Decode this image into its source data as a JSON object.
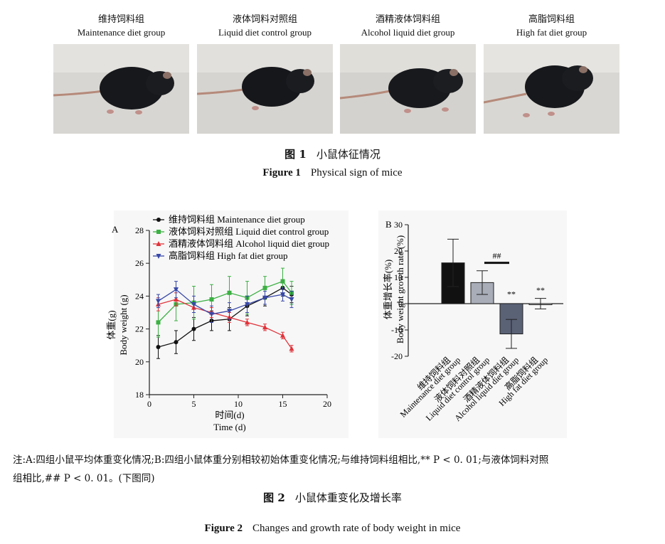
{
  "figure1": {
    "panels": [
      {
        "label_cn": "维持饲料组",
        "label_en": "Maintenance diet group"
      },
      {
        "label_cn": "液体饲料对照组",
        "label_en": "Liquid diet control group"
      },
      {
        "label_cn": "酒精液体饲料组",
        "label_en": "Alcohol liquid diet group"
      },
      {
        "label_cn": "高脂饲料组",
        "label_en": "High fat diet group"
      }
    ],
    "caption_cn_num": "图 1",
    "caption_cn": "小鼠体征情况",
    "caption_en_num": "Figure 1",
    "caption_en": "Physical sign of mice"
  },
  "chart_data": [
    {
      "type": "line",
      "panel_label": "A",
      "xlabel_cn": "时间(d)",
      "xlabel_en": "Time (d)",
      "ylabel_cn": "体重(g)",
      "ylabel_en": "Body weight (g)",
      "xlim": [
        0,
        20
      ],
      "ylim": [
        18,
        28
      ],
      "xticks": [
        0,
        5,
        10,
        15,
        20
      ],
      "yticks": [
        18,
        20,
        22,
        24,
        26,
        28
      ],
      "legend_position": "top-left",
      "series": [
        {
          "name_cn": "维持饲料组",
          "name_en": "Maintenance diet group",
          "color": "#111111",
          "marker": "circle",
          "x": [
            1,
            3,
            5,
            7,
            9,
            11,
            13,
            15,
            16
          ],
          "y": [
            20.9,
            21.2,
            22.0,
            22.5,
            22.6,
            23.4,
            23.9,
            24.5,
            24.1
          ],
          "err": [
            0.7,
            0.7,
            0.7,
            0.6,
            0.7,
            0.6,
            0.5,
            0.5,
            0.5
          ]
        },
        {
          "name_cn": "液体饲料对照组",
          "name_en": "Liquid diet control group",
          "color": "#3cb043",
          "marker": "square",
          "x": [
            1,
            3,
            5,
            7,
            9,
            11,
            13,
            15,
            16
          ],
          "y": [
            22.4,
            23.5,
            23.6,
            23.8,
            24.2,
            23.9,
            24.5,
            24.9,
            24.2
          ],
          "err": [
            0.9,
            1.0,
            1.0,
            0.9,
            1.0,
            1.0,
            0.7,
            0.8,
            0.7
          ]
        },
        {
          "name_cn": "酒精液体饲料组",
          "name_en": "Alcohol liquid diet group",
          "color": "#e0333a",
          "marker": "triangle",
          "x": [
            1,
            3,
            5,
            7,
            9,
            11,
            13,
            15,
            16
          ],
          "y": [
            23.5,
            23.8,
            23.3,
            23.0,
            22.7,
            22.4,
            22.1,
            21.6,
            20.8
          ],
          "err": [
            0.4,
            0.4,
            0.3,
            0.3,
            0.3,
            0.2,
            0.2,
            0.2,
            0.2
          ]
        },
        {
          "name_cn": "高脂饲料组",
          "name_en": "High fat diet group",
          "color": "#3848a8",
          "marker": "triangle-down",
          "x": [
            1,
            3,
            5,
            7,
            9,
            11,
            13,
            15,
            16
          ],
          "y": [
            23.7,
            24.4,
            23.5,
            22.9,
            23.1,
            23.5,
            23.9,
            24.1,
            23.8
          ],
          "err": [
            0.4,
            0.5,
            0.5,
            0.5,
            0.5,
            0.5,
            0.4,
            0.4,
            0.5
          ]
        }
      ]
    },
    {
      "type": "bar",
      "panel_label": "B",
      "ylabel_cn": "体重增长率(%)",
      "ylabel_en": "Body weight growth rate (%)",
      "ylim": [
        -20,
        30
      ],
      "yticks": [
        -20,
        -10,
        0,
        10,
        20,
        30
      ],
      "categories": [
        {
          "cn": "维持饲料组",
          "en": "Maintenance diet group"
        },
        {
          "cn": "液体饲料对照组",
          "en": "Liquid diet control group"
        },
        {
          "cn": "酒精液体饲料组",
          "en": "Alcohol liquid diet group"
        },
        {
          "cn": "高脂饲料组",
          "en": "High fat diet group"
        }
      ],
      "values": [
        15.5,
        8.0,
        -11.5,
        0.0
      ],
      "errors": [
        9.0,
        4.5,
        5.5,
        2.0
      ],
      "colors": [
        "#111111",
        "#a8adb8",
        "#5a6276",
        "#ffffff"
      ],
      "annotations": [
        "",
        "",
        "**",
        "**"
      ],
      "bracket_label": "##"
    }
  ],
  "note": {
    "line1": "注:A:四组小鼠平均体重变化情况;B:四组小鼠体重分别相较初始体重变化情况;与维持饲料组相比,** P < 0. 01;与液体饲料对照",
    "line2": "组相比,## P < 0. 01。(下图同)"
  },
  "figure2": {
    "caption_cn_num": "图 2",
    "caption_cn": "小鼠体重变化及增长率",
    "caption_en_num": "Figure 2",
    "caption_en": "Changes and growth rate of body weight in mice"
  }
}
